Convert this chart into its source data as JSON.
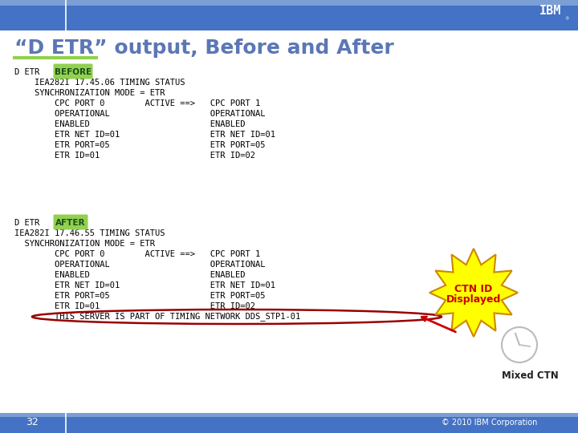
{
  "title": "“D ETR” output, Before and After",
  "title_color": "#5B77B5",
  "title_fontsize": 18,
  "bg_color": "#FFFFFF",
  "header_bg": "#4472C4",
  "footer_bg": "#4472C4",
  "slide_num": "32",
  "footer_text": "© 2010 IBM Corporation",
  "before_label": "BEFORE",
  "after_label": "AFTER",
  "before_bg": "#92D050",
  "after_bg": "#92D050",
  "code_color": "#000000",
  "code_fontsize": 7.5,
  "before_block": [
    "    IEA282I 17.45.06 TIMING STATUS",
    "    SYNCHRONIZATION MODE = ETR",
    "        CPC PORT 0        ACTIVE ==>   CPC PORT 1",
    "        OPERATIONAL                    OPERATIONAL",
    "        ENABLED                        ENABLED",
    "        ETR NET ID=01                  ETR NET ID=01",
    "        ETR PORT=05                    ETR PORT=05",
    "        ETR ID=01                      ETR ID=02"
  ],
  "after_block": [
    "IEA282I 17.46.55 TIMING STATUS",
    "  SYNCHRONIZATION MODE = ETR",
    "        CPC PORT 0        ACTIVE ==>   CPC PORT 1",
    "        OPERATIONAL                    OPERATIONAL",
    "        ENABLED                        ENABLED",
    "        ETR NET ID=01                  ETR NET ID=01",
    "        ETR PORT=05                    ETR PORT=05",
    "        ETR ID=01                      ETR ID=02",
    "        THIS SERVER IS PART OF TIMING NETWORK DDS_STP1-01"
  ],
  "ctn_label1": "CTN ID Displayed",
  "ctn_color": "#CC0000",
  "ctn_bg": "#FFFF00",
  "ctn_border": "#CC8800",
  "mixed_ctn_label": "Mixed CTN",
  "ellipse_color": "#990000",
  "header_stripe_color": "#7B9FD4",
  "clock_color": "#BBBBBB"
}
